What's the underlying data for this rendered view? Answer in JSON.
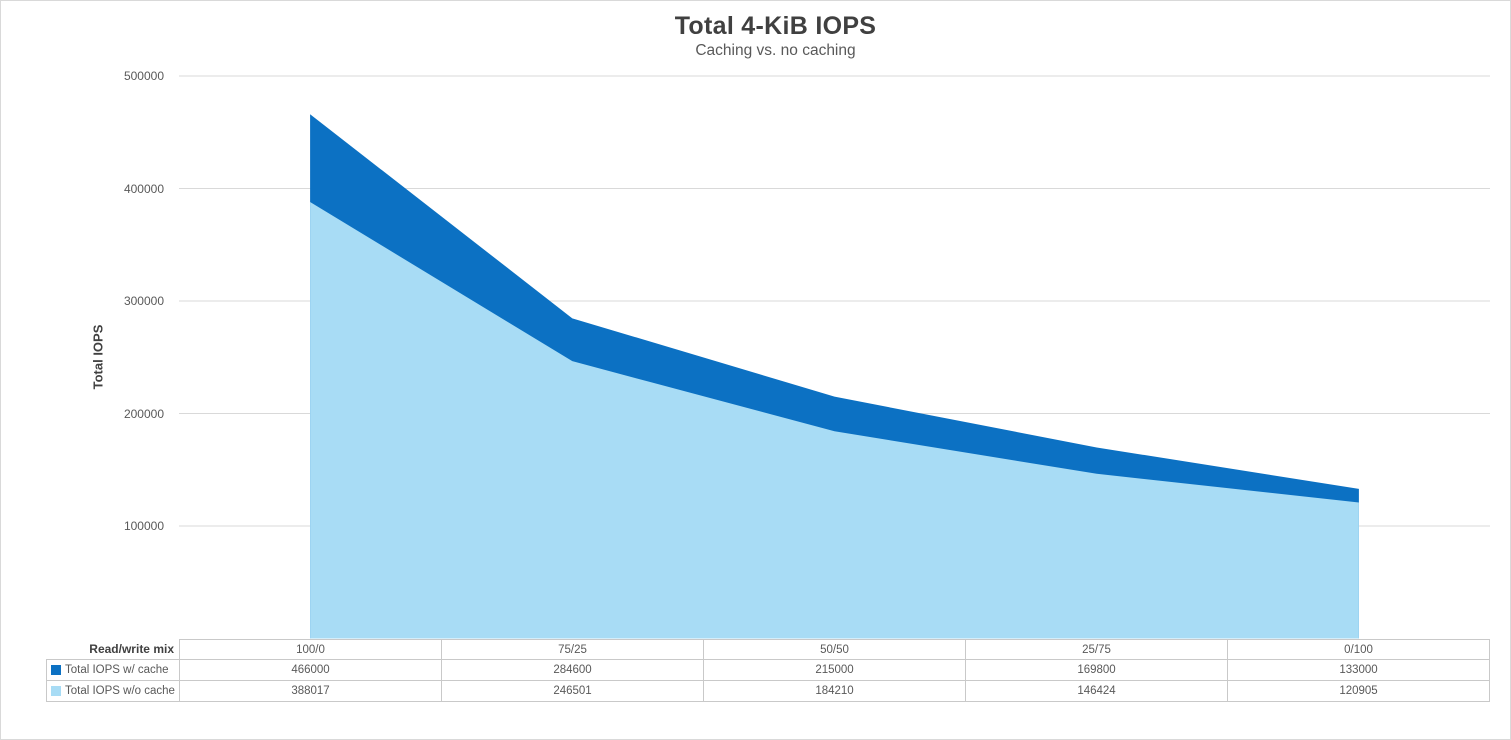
{
  "title": "Total 4-KiB IOPS",
  "subtitle": "Caching vs. no caching",
  "colors": {
    "with_cache": "#0c71c3",
    "without_cache": "#a8dcf5",
    "gridline": "#d9d9d9",
    "table_border": "#c9c9c9",
    "text": "#595959",
    "title_text": "#404040"
  },
  "y_axis": {
    "label": "Total IOPS",
    "ticks": [
      "500000",
      "400000",
      "300000",
      "200000",
      "100000"
    ]
  },
  "table": {
    "corner_label": "Read/write mix",
    "categories": [
      "100/0",
      "75/25",
      "50/50",
      "25/75",
      "0/100"
    ],
    "rows": [
      {
        "label": "Total IOPS w/ cache",
        "values": [
          "466000",
          "284600",
          "215000",
          "169800",
          "133000"
        ]
      },
      {
        "label": "Total IOPS w/o cache",
        "values": [
          "388017",
          "246501",
          "184210",
          "146424",
          "120905"
        ]
      }
    ]
  },
  "chart_data": {
    "type": "area",
    "categories": [
      "100/0",
      "75/25",
      "50/50",
      "25/75",
      "0/100"
    ],
    "series": [
      {
        "name": "Total IOPS w/ cache",
        "color": "#0c71c3",
        "values": [
          466000,
          284600,
          215000,
          169800,
          133000
        ]
      },
      {
        "name": "Total IOPS w/o cache",
        "color": "#a8dcf5",
        "values": [
          388017,
          246501,
          184210,
          146424,
          120905
        ]
      }
    ],
    "title": "Total 4-KiB IOPS",
    "subtitle": "Caching vs. no caching",
    "xlabel": "Read/write mix",
    "ylabel": "Total IOPS",
    "ylim": [
      0,
      500000
    ],
    "yticks": [
      100000,
      200000,
      300000,
      400000,
      500000
    ],
    "grid": true,
    "stacked": false,
    "legend_position": "data-table"
  }
}
